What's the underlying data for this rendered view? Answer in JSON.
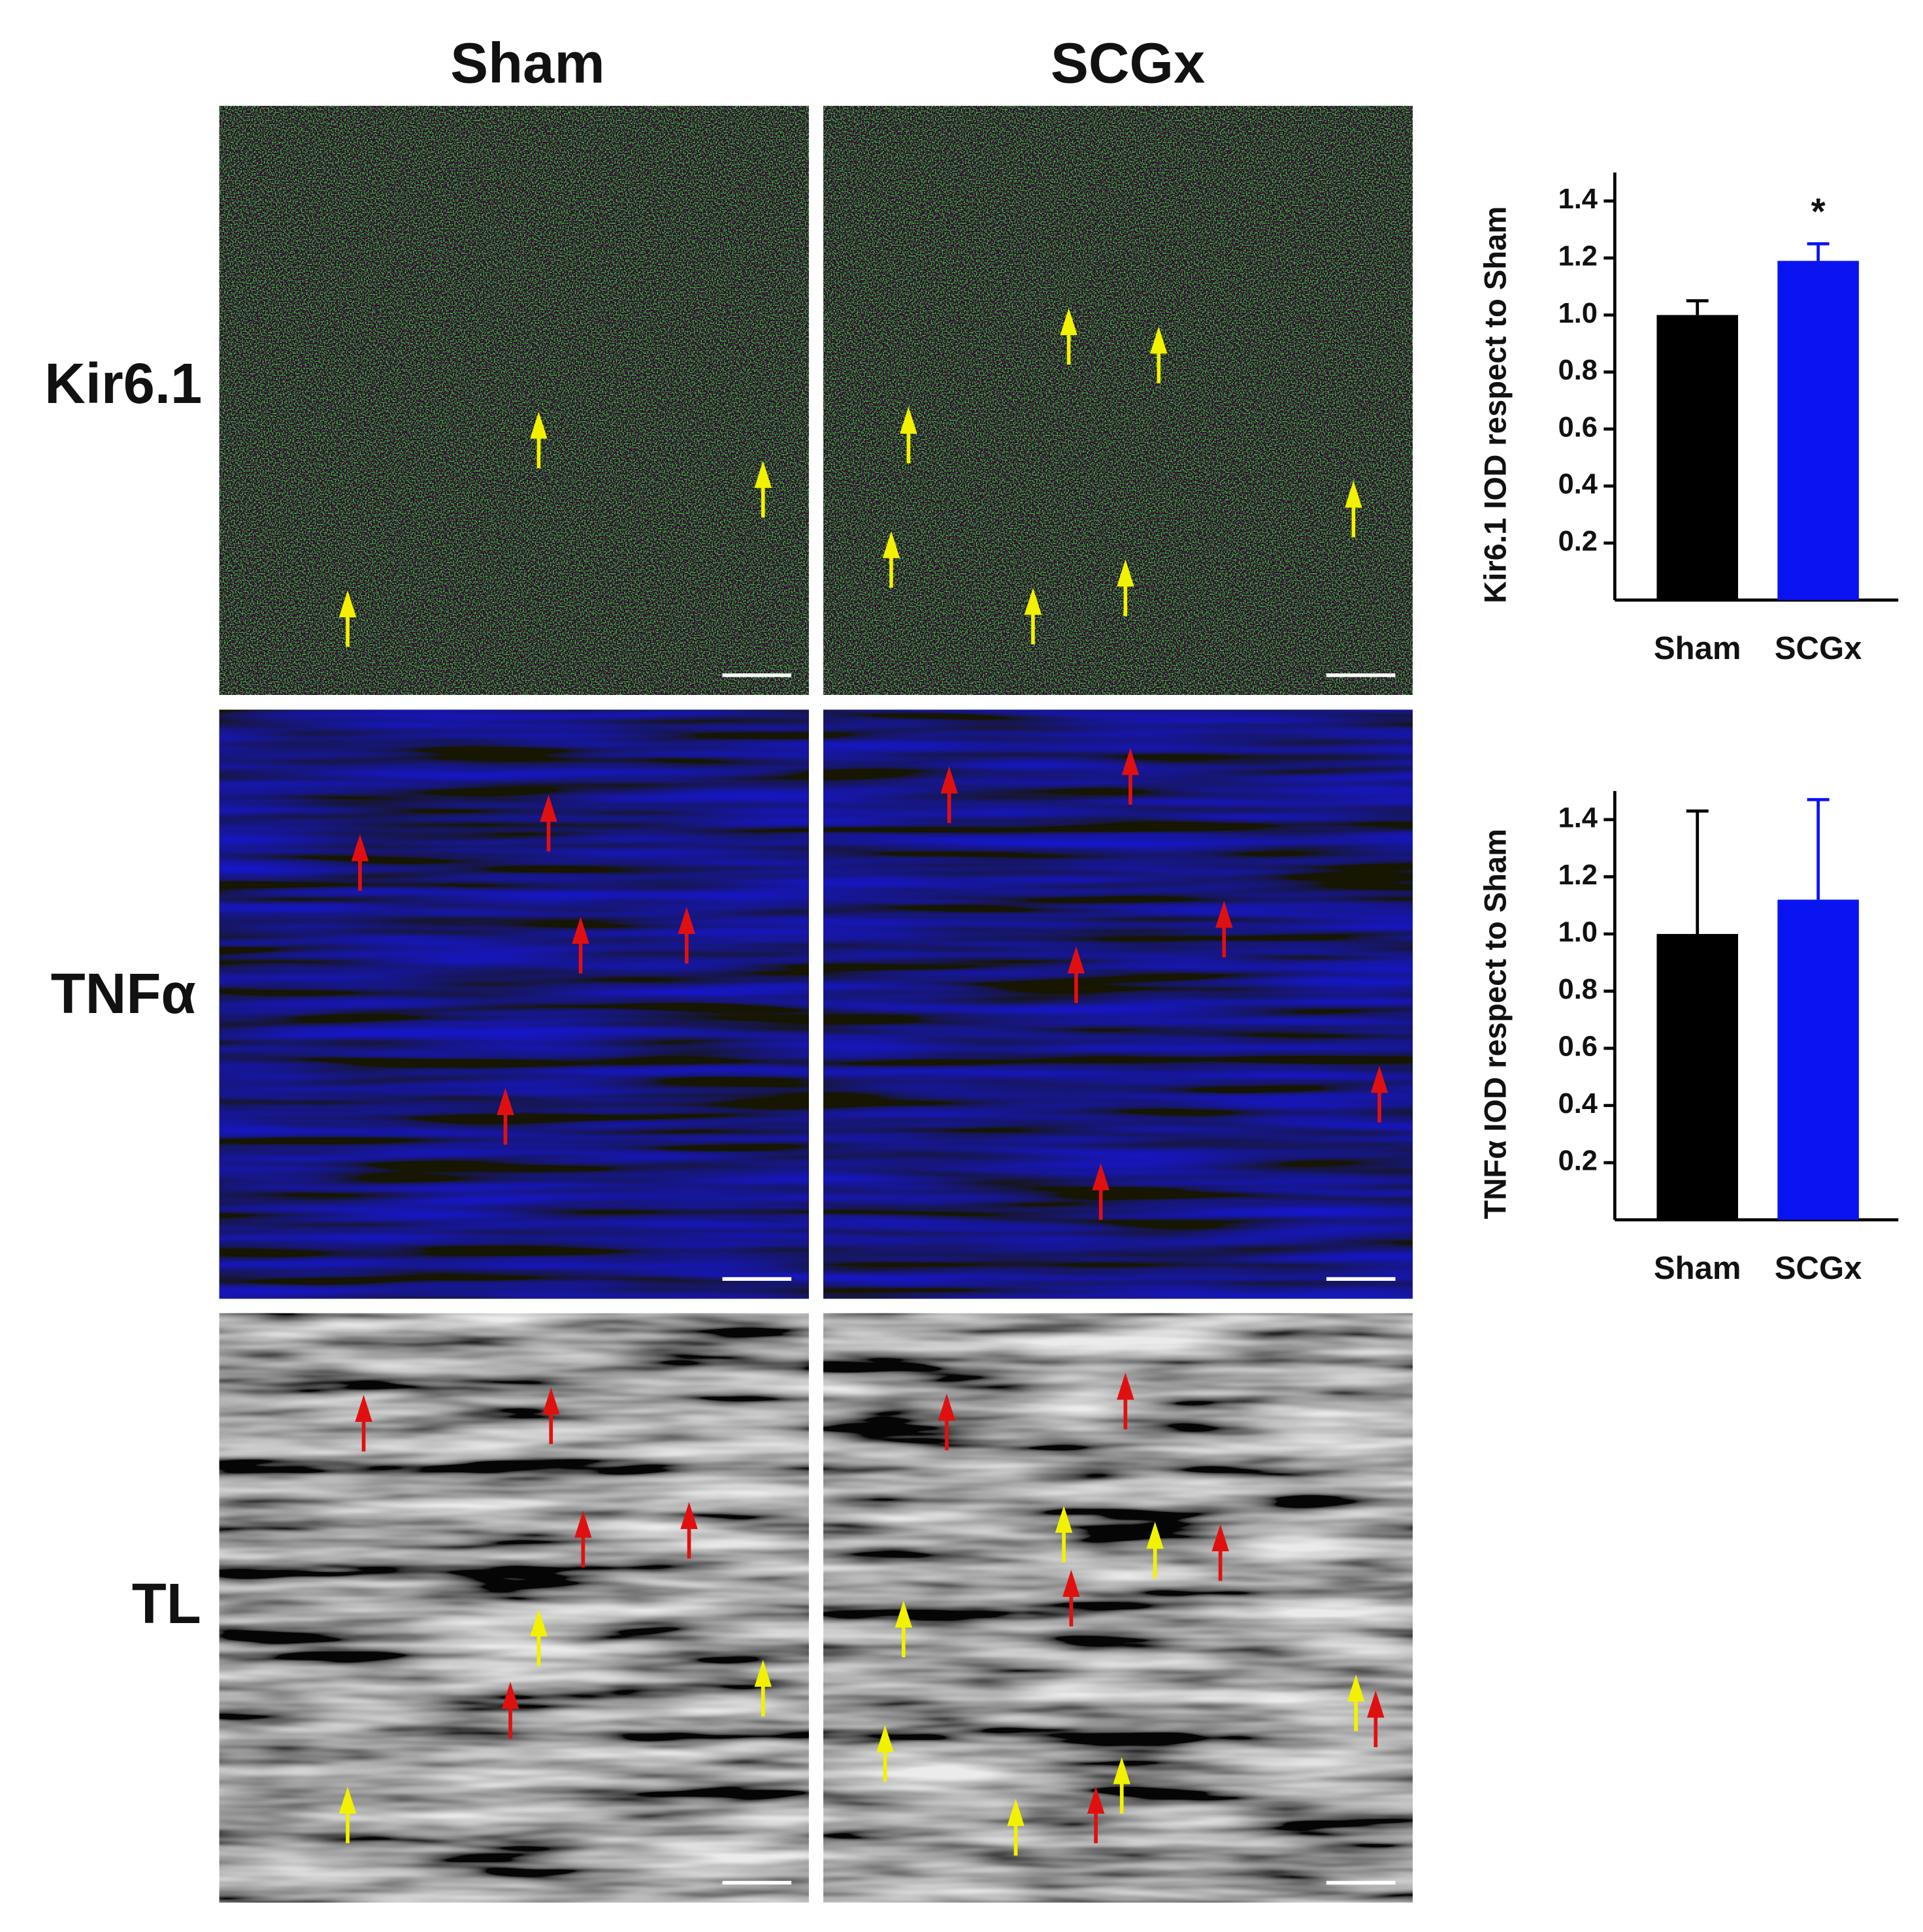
{
  "panels": {
    "columns": [
      "Sham",
      "SCGx"
    ],
    "rows": [
      "Kir6.1",
      "TNFα",
      "TL"
    ]
  },
  "chart_data": [
    {
      "type": "bar",
      "y_label": "Kir6.1 IOD respect to Sham",
      "categories": [
        "Sham",
        "SCGx"
      ],
      "values": [
        1.0,
        1.19
      ],
      "errors": [
        0.05,
        0.06
      ],
      "colors": [
        "#000000",
        "#0a14f0"
      ],
      "annotation": "*",
      "ylim": [
        0,
        1.5
      ],
      "yticks": [
        0.2,
        0.4,
        0.6,
        0.8,
        {
          "value": 1,
          "label": "1.0"
        },
        1.2,
        1.4
      ]
    },
    {
      "type": "bar",
      "y_label": "TNFα IOD respect to Sham",
      "categories": [
        "Sham",
        "SCGx"
      ],
      "values": [
        1.0,
        1.12
      ],
      "errors": [
        0.43,
        0.35
      ],
      "colors": [
        "#000000",
        "#0a14f0"
      ],
      "ylim": [
        0,
        1.5
      ],
      "yticks": [
        0.2,
        0.4,
        0.6,
        0.8,
        {
          "value": 1,
          "label": "1.0"
        },
        1.2,
        1.4
      ]
    }
  ]
}
